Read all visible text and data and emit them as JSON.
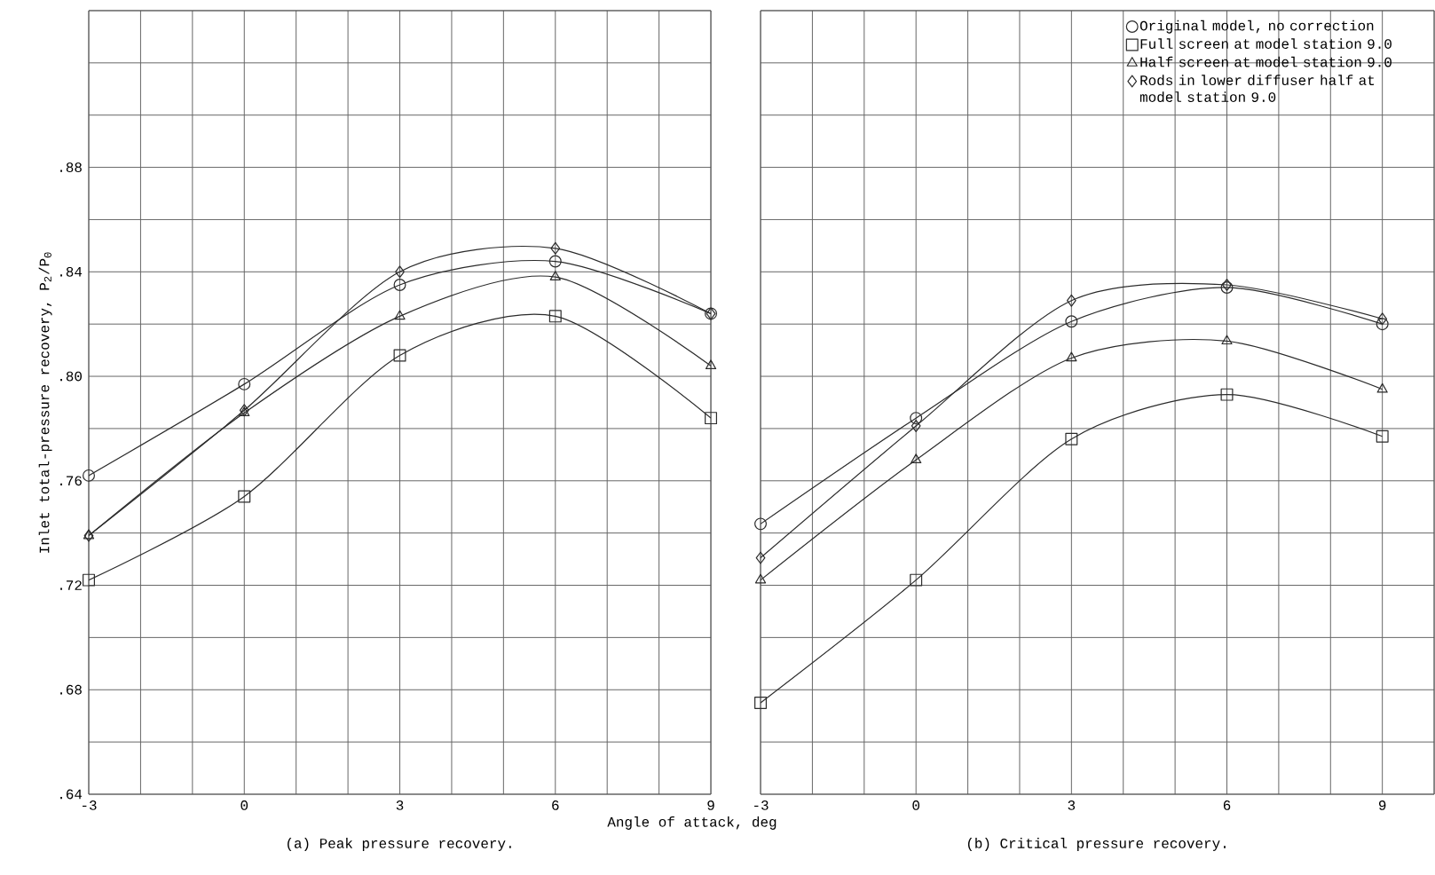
{
  "chart_data": [
    {
      "type": "line",
      "title": "(a) Peak pressure recovery.",
      "xlabel": "Angle of attack, deg",
      "ylabel": "Inlet total-pressure recovery, P$_{2}$/P$_{0}$",
      "x": [
        -3,
        0,
        3,
        6,
        9
      ],
      "xlim": [
        -3,
        9
      ],
      "ylim": [
        0.64,
        0.94
      ],
      "grid": true,
      "legend": false,
      "line_style": "solid",
      "xticks": [
        -3,
        {
          "value": -2,
          "label": null
        },
        {
          "value": -1,
          "label": null
        },
        0,
        {
          "value": 1,
          "label": null
        },
        {
          "value": 2,
          "label": null
        },
        3,
        {
          "value": 4,
          "label": null
        },
        {
          "value": 5,
          "label": null
        },
        6,
        {
          "value": 7,
          "label": null
        },
        {
          "value": 8,
          "label": null
        },
        9
      ],
      "yticks": [
        {
          "value": 0.64,
          "label": ".64"
        },
        {
          "value": 0.66,
          "label": null
        },
        {
          "value": 0.68,
          "label": ".68"
        },
        {
          "value": 0.7,
          "label": null
        },
        {
          "value": 0.72,
          "label": ".72"
        },
        {
          "value": 0.74,
          "label": null
        },
        {
          "value": 0.76,
          "label": ".76"
        },
        {
          "value": 0.78,
          "label": null
        },
        {
          "value": 0.8,
          "label": ".80"
        },
        {
          "value": 0.82,
          "label": null
        },
        {
          "value": 0.84,
          "label": ".84"
        },
        {
          "value": 0.86,
          "label": null
        },
        {
          "value": 0.88,
          "label": ".88"
        },
        {
          "value": 0.9,
          "label": null
        },
        {
          "value": 0.92,
          "label": null
        },
        {
          "value": 0.94,
          "label": null
        }
      ],
      "series": [
        {
          "color": "#2b2b2b",
          "marker": "circle",
          "values": [
            0.762,
            0.797,
            0.835,
            0.844,
            0.824
          ]
        },
        {
          "color": "#2b2b2b",
          "marker": "square",
          "values": [
            0.722,
            0.754,
            0.808,
            0.823,
            0.784
          ]
        },
        {
          "color": "#2b2b2b",
          "marker": "triangle",
          "values": [
            0.739,
            0.786,
            0.823,
            0.838,
            0.804
          ]
        },
        {
          "color": "#2b2b2b",
          "marker": "diamond",
          "values": [
            0.739,
            0.787,
            0.84,
            0.849,
            0.824
          ]
        }
      ]
    },
    {
      "type": "line",
      "title": "(b) Critical pressure recovery.",
      "x": [
        -3,
        0,
        3,
        6,
        9
      ],
      "xlim": [
        -3,
        10
      ],
      "ylim": [
        0.64,
        0.94
      ],
      "grid": true,
      "legend": "top right",
      "line_style": "solid",
      "tick_labels": "x",
      "xticks": [
        -3,
        {
          "value": -2,
          "label": null
        },
        {
          "value": -1,
          "label": null
        },
        0,
        {
          "value": 1,
          "label": null
        },
        {
          "value": 2,
          "label": null
        },
        3,
        {
          "value": 4,
          "label": null
        },
        {
          "value": 5,
          "label": null
        },
        6,
        {
          "value": 7,
          "label": null
        },
        {
          "value": 8,
          "label": null
        },
        9,
        {
          "value": 10,
          "label": null
        }
      ],
      "yticks": [
        {
          "value": 0.64,
          "label": null
        },
        {
          "value": 0.66,
          "label": null
        },
        {
          "value": 0.68,
          "label": null
        },
        {
          "value": 0.7,
          "label": null
        },
        {
          "value": 0.72,
          "label": null
        },
        {
          "value": 0.74,
          "label": null
        },
        {
          "value": 0.76,
          "label": null
        },
        {
          "value": 0.78,
          "label": null
        },
        {
          "value": 0.8,
          "label": null
        },
        {
          "value": 0.82,
          "label": null
        },
        {
          "value": 0.84,
          "label": null
        },
        {
          "value": 0.86,
          "label": null
        },
        {
          "value": 0.88,
          "label": null
        },
        {
          "value": 0.9,
          "label": null
        },
        {
          "value": 0.92,
          "label": null
        },
        {
          "value": 0.94,
          "label": null
        }
      ],
      "series": [
        {
          "name": "Original model, no correction",
          "color": "#2b2b2b",
          "marker": "circle",
          "values": [
            0.7435,
            0.784,
            0.821,
            0.834,
            0.82
          ]
        },
        {
          "name": "Full screen at model station 9.0",
          "color": "#2b2b2b",
          "marker": "square",
          "values": [
            0.675,
            0.722,
            0.776,
            0.793,
            0.777
          ]
        },
        {
          "name": "Half screen at model station 9.0",
          "color": "#2b2b2b",
          "marker": "triangle",
          "values": [
            0.722,
            0.768,
            0.807,
            0.8135,
            0.795
          ]
        },
        {
          "name": "Rods in lower diffuser half at model station 9.0",
          "color": "#2b2b2b",
          "marker": "diamond",
          "values": [
            0.7305,
            0.781,
            0.829,
            0.835,
            0.822
          ]
        }
      ]
    }
  ]
}
